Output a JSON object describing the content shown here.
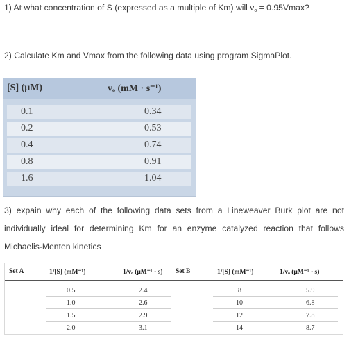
{
  "q1": {
    "text": "1) At what concentration of S (expressed as a multiple of Km) will v",
    "sub": "o",
    "tail": " = 0.95Vmax?"
  },
  "q2": {
    "text": "2) Calculate Km and Vmax from the following data using program SigmaPlot."
  },
  "table1": {
    "headers": [
      "[S] (μM)",
      "vₒ (mM · s⁻¹)"
    ],
    "rows": [
      [
        "0.1",
        "0.34"
      ],
      [
        "0.2",
        "0.53"
      ],
      [
        "0.4",
        "0.74"
      ],
      [
        "0.8",
        "0.91"
      ],
      [
        "1.6",
        "1.04"
      ]
    ]
  },
  "q3": {
    "text": "3) expain why each of the following data sets from a Lineweaver Burk plot are not individually ideal for determining Km for an enzyme catalyzed reaction that follows Michaelis-Menten kinetics"
  },
  "table2": {
    "headers": [
      "Set A",
      "1/[S] (mM⁻¹)",
      "1/vₒ (μM⁻¹ · s)",
      "Set B",
      "1/[S] (mM⁻¹)",
      "1/vₒ (μM⁻¹ · s)"
    ],
    "setA": [
      [
        "0.5",
        "2.4"
      ],
      [
        "1.0",
        "2.6"
      ],
      [
        "1.5",
        "2.9"
      ],
      [
        "2.0",
        "3.1"
      ]
    ],
    "setB": [
      [
        "8",
        "5.9"
      ],
      [
        "10",
        "6.8"
      ],
      [
        "12",
        "7.8"
      ],
      [
        "14",
        "8.7"
      ]
    ]
  }
}
